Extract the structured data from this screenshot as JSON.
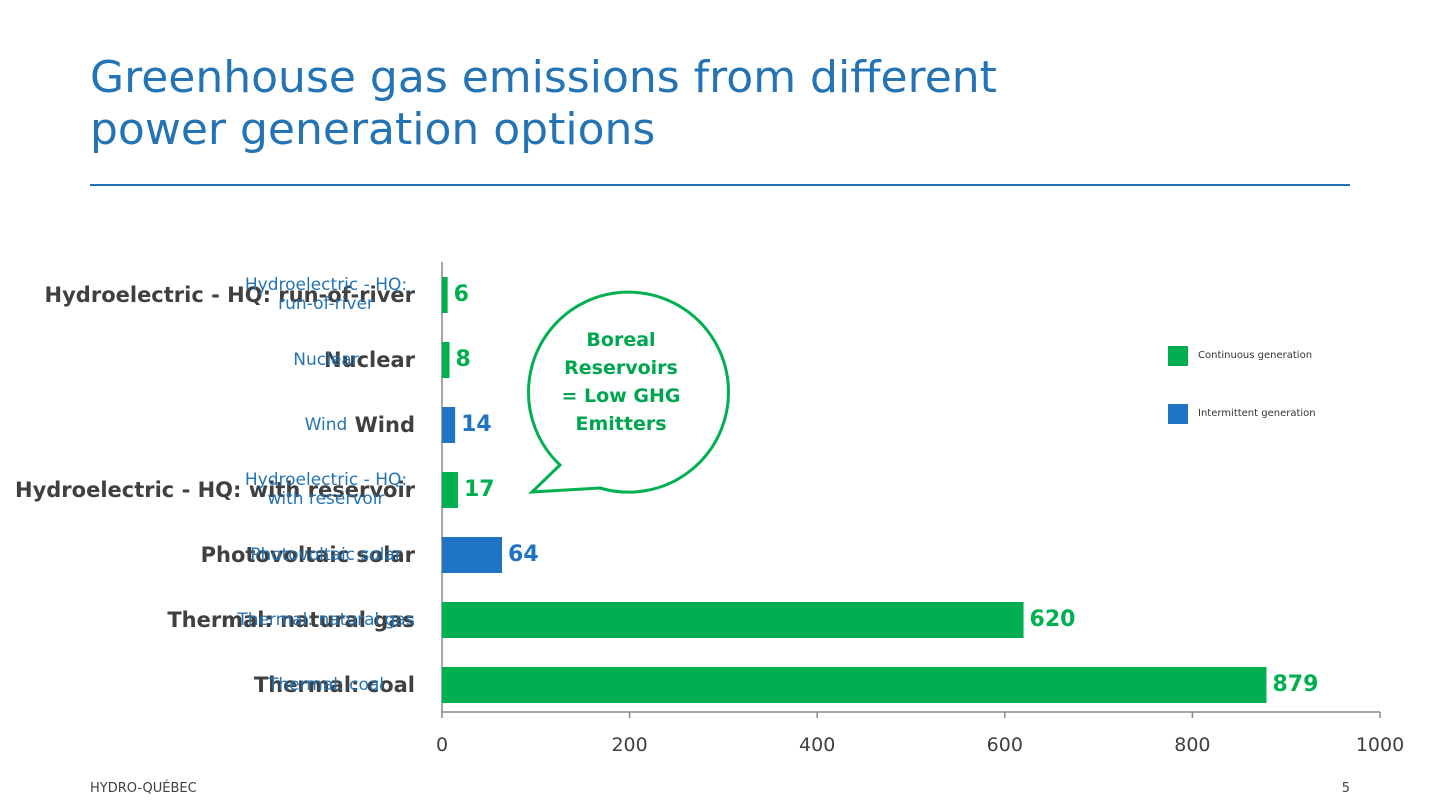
{
  "title": "Greenhouse gas emissions from different power generation options",
  "chart_data": {
    "type": "bar",
    "orientation": "horizontal",
    "categories": [
      "Hydroelectric - HQ: run-of-river",
      "Nuclear",
      "Wind",
      "Hydroelectric - HQ: with reservoir",
      "Photovoltaic solar",
      "Thermal: natural gas",
      "Thermal: coal"
    ],
    "values": [
      6,
      8,
      14,
      17,
      64,
      620,
      879
    ],
    "colors": [
      "#00b050",
      "#00b050",
      "#1f75c3",
      "#00b050",
      "#1f75c3",
      "#00b050",
      "#00b050"
    ],
    "xlim": [
      0,
      1000
    ],
    "xticks": [
      0,
      200,
      400,
      600,
      800,
      1000
    ],
    "legend": [
      {
        "name": "Continuous generation",
        "color": "#00b050"
      },
      {
        "name": "Intermittent generation",
        "color": "#1f75c3"
      }
    ],
    "annotation": "Boreal Reservoirs = Low GHG Emitters"
  },
  "footer": {
    "left": "HYDRO-QUÉBEC",
    "page": 5
  }
}
